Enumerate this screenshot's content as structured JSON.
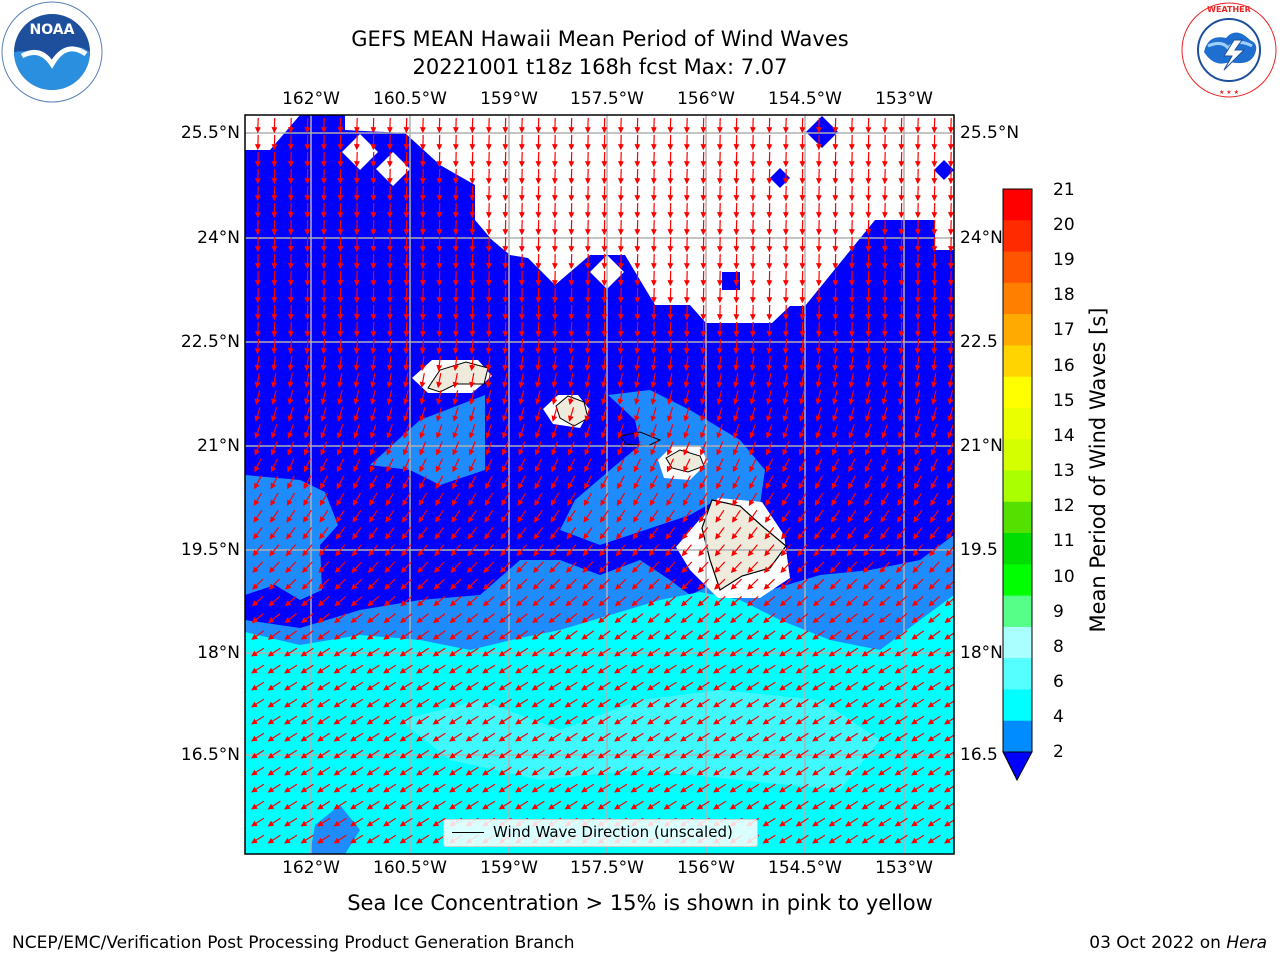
{
  "title": {
    "line1": "GEFS MEAN Hawaii Mean Period of Wind Waves",
    "line2": "20221001 t18z 168h fcst   Max: 7.07"
  },
  "logos": {
    "left": "NOAA",
    "left_ring_text": "NATIONAL OCEANIC AND ATMOSPHERIC ADMINISTRATION · U.S. DEPARTMENT OF COMMERCE",
    "right_ring_text": "NATIONAL WEATHER SERVICE"
  },
  "map": {
    "lon_labels": [
      "162°W",
      "160.5°W",
      "159°W",
      "157.5°W",
      "156°W",
      "154.5°W",
      "153°W"
    ],
    "lat_labels_left": [
      "25.5°N",
      "24°N",
      "22.5°N",
      "21°N",
      "19.5°N",
      "18°N",
      "16.5°N"
    ],
    "lat_labels_right": [
      "25.5°N",
      "24°N",
      "22.5",
      "21°N",
      "19.5",
      "18°N",
      "16.5"
    ],
    "legend": "Wind Wave Direction (unscaled)",
    "ocean_colors": {
      "period_2_4": "#0033ff",
      "period_4_6": "#1e8cff",
      "period_6_7": "#00ffff",
      "period_7_8": "#3ff9ff",
      "below_2": "#0000ff",
      "land": "#efebdc",
      "arrows": "#ff0000"
    }
  },
  "colorbar": {
    "label": "Mean Period of Wind Waves [s]",
    "ticks": [
      "21",
      "20",
      "19",
      "18",
      "17",
      "16",
      "15",
      "14",
      "13",
      "12",
      "11",
      "10",
      "9",
      "8",
      "6",
      "4",
      "2"
    ],
    "colors": [
      "#ff0000",
      "#ff2a00",
      "#ff5500",
      "#ff7f00",
      "#ffaa00",
      "#ffd400",
      "#ffff00",
      "#eaff00",
      "#d4ff00",
      "#aaff00",
      "#55e000",
      "#00dd00",
      "#00ff00",
      "#55ff88",
      "#aaffff",
      "#55ffff",
      "#00ffff",
      "#008cff"
    ],
    "under_color": "#0000ff"
  },
  "footnote": "Sea Ice Concentration > 15% is shown in pink to yellow",
  "credit_left": "NCEP/EMC/Verification Post Processing Product Generation Branch",
  "credit_right_date": "03 Oct 2022 on ",
  "credit_right_host": "Hera"
}
